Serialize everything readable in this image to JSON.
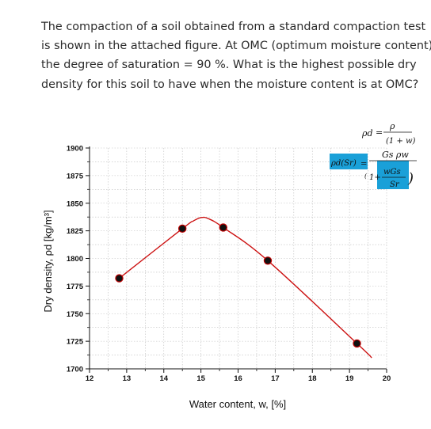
{
  "question": {
    "lines": [
      "The compaction of a soil obtained from a standard compaction test",
      "is shown in the attached figure. At OMC (optimum moisture content)",
      "the degree of saturation = 90 %.  What is the highest possible  dry",
      "density for this soil to have when the moisture content is at OMC?"
    ]
  },
  "chart_data": {
    "type": "scatter",
    "xlabel": "Water content, w, [%]",
    "ylabel": "Dry density, ρd [kg/m³]",
    "xlim": [
      12,
      20
    ],
    "ylim": [
      1700,
      1900
    ],
    "x_ticks": [
      12,
      13,
      14,
      15,
      16,
      17,
      18,
      19,
      20
    ],
    "y_ticks": [
      1700,
      1725,
      1750,
      1775,
      1800,
      1825,
      1850,
      1875,
      1900
    ],
    "grid": true,
    "series": [
      {
        "points": [
          {
            "x": 12.8,
            "y": 1782
          },
          {
            "x": 14.5,
            "y": 1827
          },
          {
            "x": 15.6,
            "y": 1828
          },
          {
            "x": 16.8,
            "y": 1798
          },
          {
            "x": 19.2,
            "y": 1723
          }
        ],
        "marker_color": "#111111",
        "marker_edge": "#c00000"
      }
    ],
    "fit_curve": {
      "color": "#cc1111",
      "points": [
        {
          "x": 12.8,
          "y": 1782
        },
        {
          "x": 14.5,
          "y": 1827
        },
        {
          "x": 14.8,
          "y": 1834
        },
        {
          "x": 15.0,
          "y": 1837
        },
        {
          "x": 15.2,
          "y": 1836
        },
        {
          "x": 15.6,
          "y": 1828
        },
        {
          "x": 16.8,
          "y": 1798
        },
        {
          "x": 19.2,
          "y": 1723
        },
        {
          "x": 19.6,
          "y": 1710
        }
      ]
    },
    "annotations": {
      "formula_rho_d": [
        "ρd",
        "=",
        "ρ",
        "(1 + w)"
      ],
      "formula_sr": [
        "ρd(Sr)",
        "=",
        "Gs ρw",
        "1+",
        "wGs",
        "Sr"
      ],
      "highlight_color": "#1aa0d8"
    }
  }
}
